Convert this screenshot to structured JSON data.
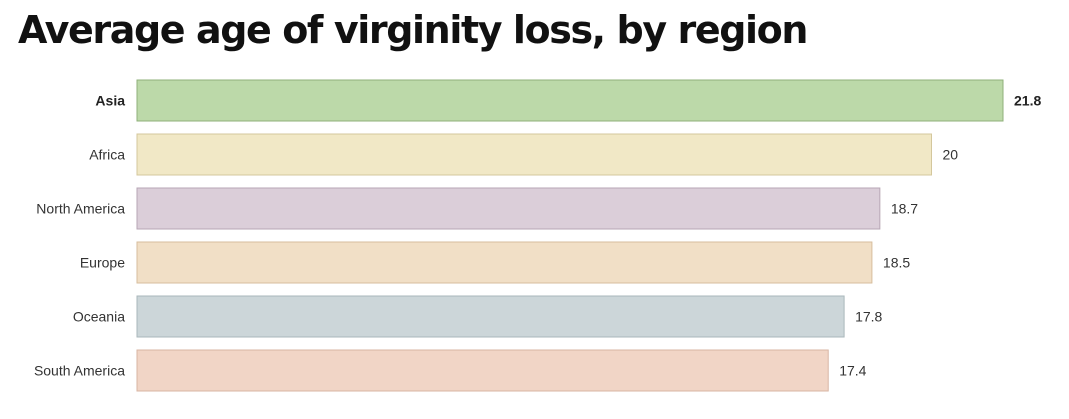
{
  "chart_data": {
    "type": "bar",
    "orientation": "horizontal",
    "title": "Average age of virginity loss, by region",
    "categories": [
      "Asia",
      "Africa",
      "North America",
      "Europe",
      "Oceania",
      "South America"
    ],
    "values": [
      21.8,
      20,
      18.7,
      18.5,
      17.8,
      17.4
    ],
    "value_labels": [
      "21.8",
      "20",
      "18.7",
      "18.5",
      "17.8",
      "17.4"
    ],
    "highlighted": "Asia",
    "colors": {
      "fill": [
        "#bcd9a9",
        "#f1e8c6",
        "#dbced9",
        "#f1dfc6",
        "#ccd6d9",
        "#f1d5c6"
      ],
      "stroke": [
        "#8fb07a",
        "#d4c79c",
        "#b7a6b5",
        "#d7be9d",
        "#a9b7bb",
        "#d8b5a3"
      ]
    },
    "xlim": [
      0,
      21.8
    ],
    "grid": false,
    "legend": "none"
  }
}
